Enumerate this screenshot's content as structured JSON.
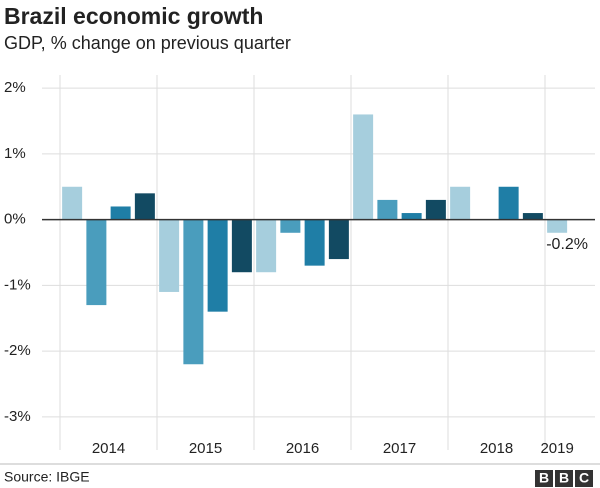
{
  "chart_data": {
    "type": "bar",
    "title": "Brazil economic growth",
    "subtitle": "GDP, % change on previous quarter",
    "categories": [
      "2014",
      null,
      null,
      null,
      "2015",
      null,
      null,
      null,
      "2016",
      null,
      null,
      null,
      "2017",
      null,
      null,
      null,
      "2018",
      null,
      null,
      null,
      "2019"
    ],
    "values": [
      0.5,
      -1.3,
      0.2,
      0.4,
      -1.1,
      -2.2,
      -1.4,
      -0.8,
      -0.8,
      -0.2,
      -0.7,
      -0.6,
      1.6,
      0.3,
      0.1,
      0.3,
      0.5,
      0.0,
      0.5,
      0.1,
      -0.2
    ],
    "value_labels": [
      null,
      null,
      null,
      null,
      null,
      null,
      null,
      null,
      null,
      null,
      null,
      null,
      null,
      null,
      null,
      null,
      null,
      null,
      null,
      null,
      "-0.2%"
    ],
    "colors": [
      "#a6cedd",
      "#4a9dbd",
      "#1f7ea6",
      "#124a62"
    ],
    "ylim": [
      -3.2,
      2.2
    ],
    "yticks": [
      {
        "value": 2,
        "label": "2%"
      },
      {
        "value": 1,
        "label": "1%"
      },
      {
        "value": 0,
        "label": "0%"
      },
      {
        "value": -1,
        "label": "-1%"
      },
      {
        "value": -2,
        "label": "-2%"
      },
      {
        "value": -3,
        "label": "-3%"
      }
    ],
    "grid": true,
    "source": "Source: IBGE",
    "logo": "BBC"
  }
}
